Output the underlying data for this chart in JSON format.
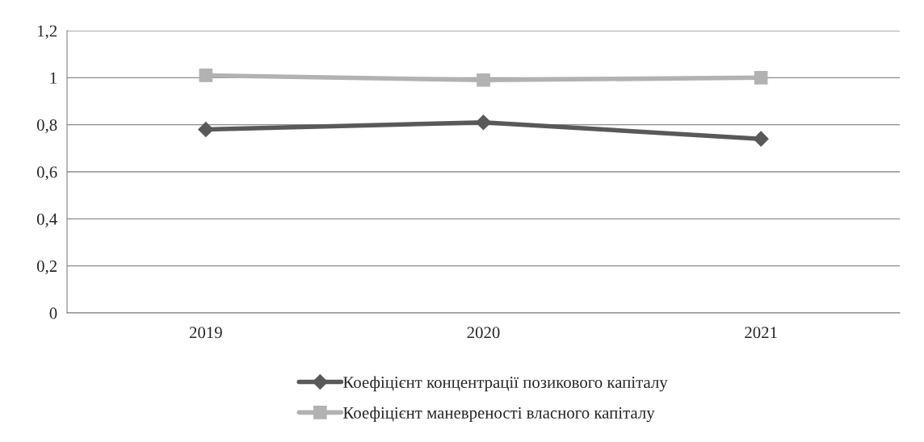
{
  "chart_data": {
    "type": "line",
    "categories": [
      "2019",
      "2020",
      "2021"
    ],
    "series": [
      {
        "name": "Коефіцієнт концентрації позикового капіталу",
        "color": "#595959",
        "marker": "diamond",
        "values": [
          0.78,
          0.81,
          0.74
        ]
      },
      {
        "name": "Коефіцієнт маневреності власного капіталу",
        "color": "#b2b2b2",
        "marker": "square",
        "values": [
          1.01,
          0.99,
          1.0
        ]
      }
    ],
    "ylim": [
      0,
      1.2
    ],
    "yticks": [
      0,
      {
        "value": 0.2,
        "label": "0,2"
      },
      {
        "value": 0.4,
        "label": "0,4"
      },
      {
        "value": 0.6,
        "label": "0,6"
      },
      {
        "value": 0.8,
        "label": "0,8"
      },
      1,
      {
        "value": 1.2,
        "label": "1,2"
      }
    ],
    "grid": "y",
    "legend": "bottom",
    "line_style": "solid"
  }
}
